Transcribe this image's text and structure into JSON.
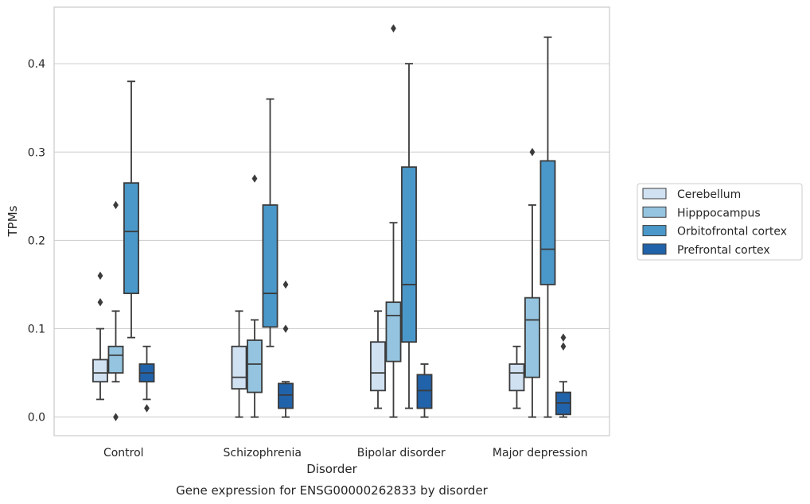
{
  "chart_data": {
    "type": "box",
    "xlabel": "Disorder",
    "ylabel": "TPMs",
    "caption": "Gene expression for ENSG00000262833 by disorder",
    "categories": [
      "Control",
      "Schizophrenia",
      "Bipolar disorder",
      "Major depression"
    ],
    "ylim": [
      -0.021,
      0.464
    ],
    "yticks": [
      0.0,
      0.1,
      0.2,
      0.3,
      0.4
    ],
    "ytick_labels": [
      "0.0",
      "0.1",
      "0.2",
      "0.3",
      "0.4"
    ],
    "grid": "horizontal",
    "legend_position": "right",
    "series": [
      {
        "name": "Cerebellum",
        "color": "#d0e1f2",
        "boxes": [
          {
            "whislo": 0.02,
            "q1": 0.04,
            "med": 0.05,
            "q3": 0.065,
            "whishi": 0.1,
            "fliers": [
              0.13,
              0.16
            ]
          },
          {
            "whislo": 0.0,
            "q1": 0.032,
            "med": 0.045,
            "q3": 0.08,
            "whishi": 0.12,
            "fliers": []
          },
          {
            "whislo": 0.01,
            "q1": 0.03,
            "med": 0.05,
            "q3": 0.085,
            "whishi": 0.12,
            "fliers": []
          },
          {
            "whislo": 0.01,
            "q1": 0.03,
            "med": 0.05,
            "q3": 0.06,
            "whishi": 0.08,
            "fliers": []
          }
        ]
      },
      {
        "name": "Hipppocampus",
        "color": "#94c4df",
        "boxes": [
          {
            "whislo": 0.04,
            "q1": 0.05,
            "med": 0.07,
            "q3": 0.08,
            "whishi": 0.12,
            "fliers": [
              0.0,
              0.24
            ]
          },
          {
            "whislo": 0.0,
            "q1": 0.028,
            "med": 0.06,
            "q3": 0.087,
            "whishi": 0.11,
            "fliers": [
              0.27
            ]
          },
          {
            "whislo": 0.0,
            "q1": 0.063,
            "med": 0.115,
            "q3": 0.13,
            "whishi": 0.22,
            "fliers": [
              0.44
            ]
          },
          {
            "whislo": 0.0,
            "q1": 0.045,
            "med": 0.11,
            "q3": 0.135,
            "whishi": 0.24,
            "fliers": [
              0.3
            ]
          }
        ]
      },
      {
        "name": "Orbitofrontal cortex",
        "color": "#4a98c9",
        "boxes": [
          {
            "whislo": 0.09,
            "q1": 0.14,
            "med": 0.21,
            "q3": 0.265,
            "whishi": 0.38,
            "fliers": []
          },
          {
            "whislo": 0.08,
            "q1": 0.102,
            "med": 0.14,
            "q3": 0.24,
            "whishi": 0.36,
            "fliers": []
          },
          {
            "whislo": 0.01,
            "q1": 0.085,
            "med": 0.15,
            "q3": 0.283,
            "whishi": 0.4,
            "fliers": []
          },
          {
            "whislo": 0.0,
            "q1": 0.15,
            "med": 0.19,
            "q3": 0.29,
            "whishi": 0.43,
            "fliers": []
          }
        ]
      },
      {
        "name": "Prefrontal cortex",
        "color": "#2163aa",
        "boxes": [
          {
            "whislo": 0.02,
            "q1": 0.04,
            "med": 0.05,
            "q3": 0.06,
            "whishi": 0.08,
            "fliers": [
              0.01
            ]
          },
          {
            "whislo": 0.0,
            "q1": 0.01,
            "med": 0.025,
            "q3": 0.038,
            "whishi": 0.04,
            "fliers": [
              0.1,
              0.15
            ]
          },
          {
            "whislo": 0.0,
            "q1": 0.01,
            "med": 0.03,
            "q3": 0.048,
            "whishi": 0.06,
            "fliers": []
          },
          {
            "whislo": 0.0,
            "q1": 0.003,
            "med": 0.016,
            "q3": 0.028,
            "whishi": 0.04,
            "fliers": [
              0.08,
              0.09
            ]
          }
        ]
      }
    ]
  }
}
